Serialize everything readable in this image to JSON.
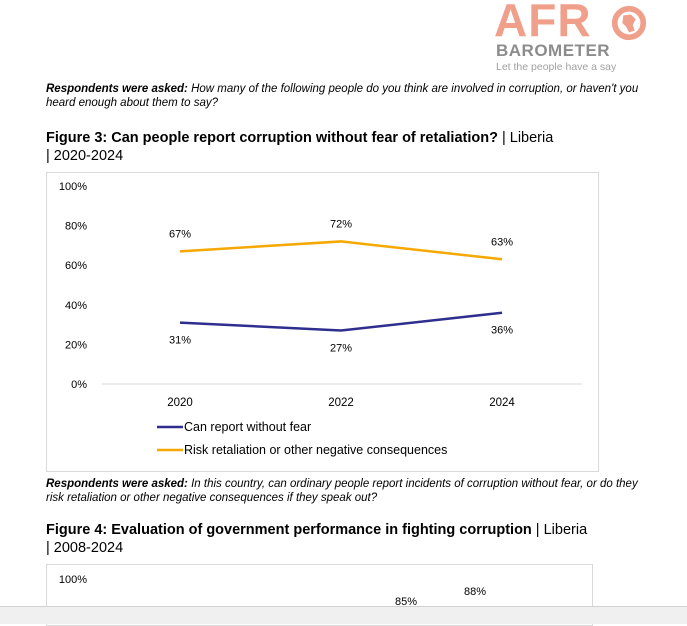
{
  "logo": {
    "brand_part1": "AFR",
    "brand_part2": "BAROMETER",
    "tagline": "Let the people have a say",
    "brand_color": "#f0a08a"
  },
  "note1": {
    "label": "Respondents were asked:",
    "text": " How many of the following people do you think are involved in corruption, or haven't you heard enough about them to say?"
  },
  "figure3": {
    "title": "Figure 3: Can people report corruption without fear of retaliation?",
    "subtitle_1": " | Liberia",
    "subtitle_2": "| 2020-2024"
  },
  "chart_data": [
    {
      "type": "line",
      "x": [
        "2020",
        "2022",
        "2024"
      ],
      "y_ticks": [
        "0%",
        "20%",
        "40%",
        "60%",
        "80%",
        "100%"
      ],
      "ylim": [
        0,
        100
      ],
      "grid": false,
      "legend_position": "bottom",
      "series": [
        {
          "name": "Can report without fear",
          "values": [
            31,
            27,
            36
          ],
          "labels": [
            "31%",
            "27%",
            "36%"
          ],
          "color": "#2e2e8f"
        },
        {
          "name": "Risk retaliation or other negative consequences",
          "values": [
            67,
            72,
            63
          ],
          "labels": [
            "67%",
            "72%",
            "63%"
          ],
          "color": "#f5a800"
        }
      ]
    },
    {
      "type": "line",
      "y_ticks": [
        "100%"
      ],
      "visible_labels": [
        "85%",
        "88%"
      ]
    }
  ],
  "note2": {
    "label": "Respondents were asked:",
    "text": " In this country, can ordinary people report incidents of corruption without fear, or do they risk retaliation or other negative consequences if they speak out?"
  },
  "figure4": {
    "title": "Figure 4: Evaluation of government performance in fighting corruption",
    "subtitle_1": " | Liberia",
    "subtitle_2": "| 2008-2024"
  }
}
